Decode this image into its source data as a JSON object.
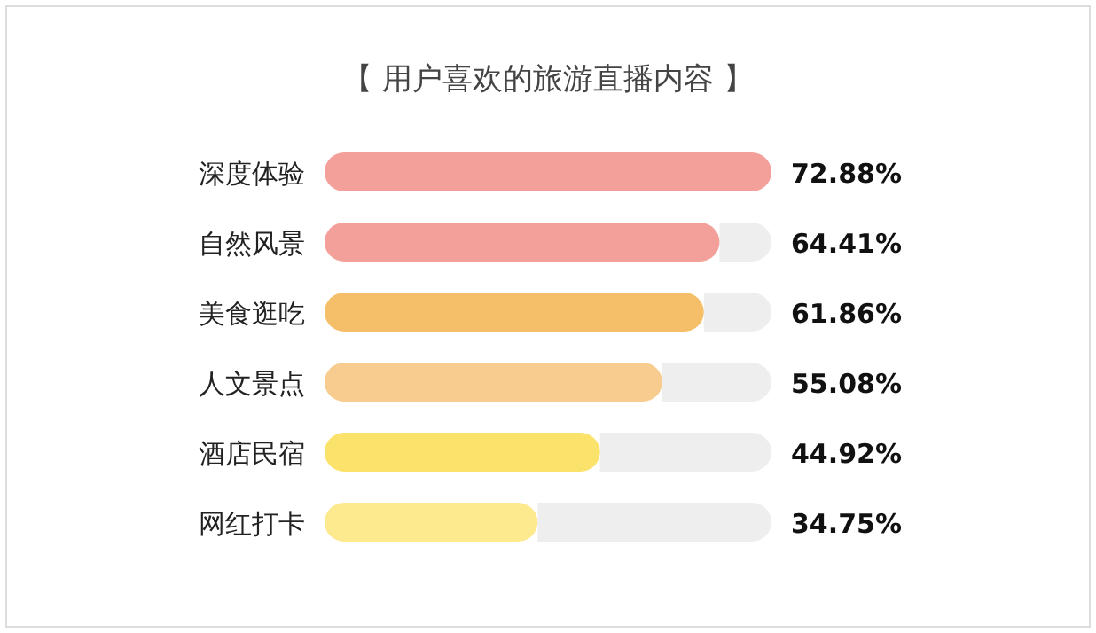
{
  "chart_data": {
    "type": "bar",
    "orientation": "horizontal",
    "title": "【 用户喜欢的旅游直播内容 】",
    "categories": [
      "深度体验",
      "自然风景",
      "美食逛吃",
      "人文景点",
      "酒店民宿",
      "网红打卡"
    ],
    "values": [
      72.88,
      64.41,
      61.86,
      55.08,
      44.92,
      34.75
    ],
    "colors": [
      "#f4a09a",
      "#f4a09a",
      "#f5bf6a",
      "#f7cc8e",
      "#fbe26a",
      "#fde98e"
    ],
    "value_labels": [
      "72.88%",
      "64.41%",
      "61.86%",
      "55.08%",
      "44.92%",
      "34.75%"
    ]
  }
}
